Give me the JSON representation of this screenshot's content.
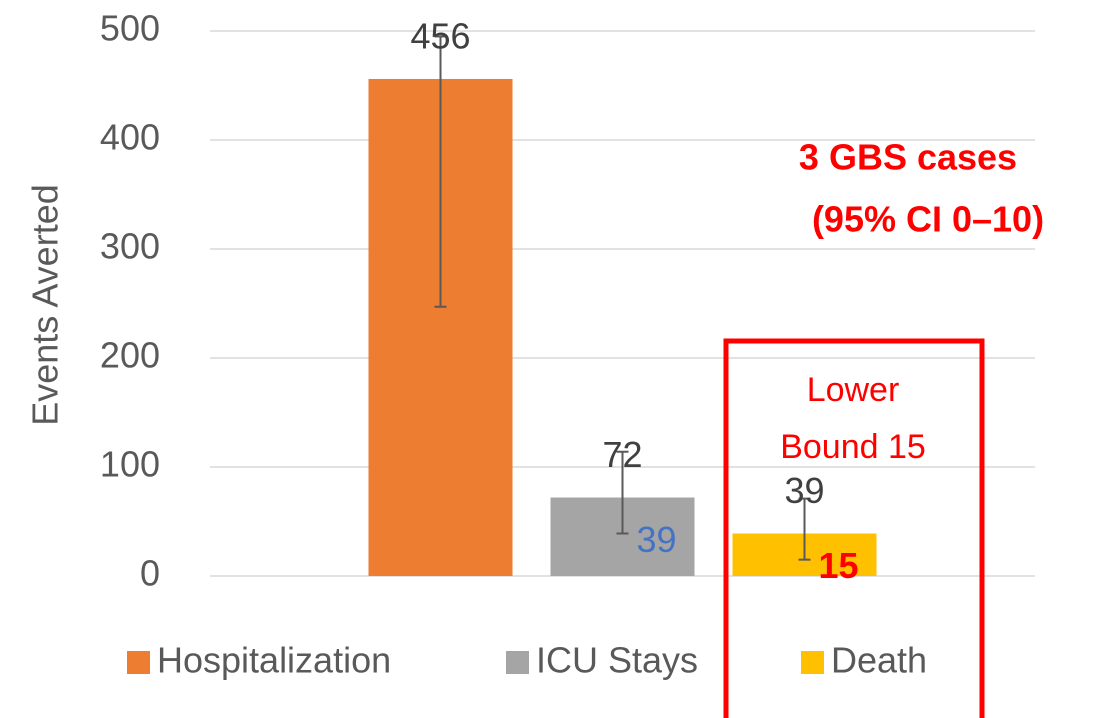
{
  "chart_data": {
    "type": "bar",
    "ylabel": "Events Averted",
    "ylim": [
      0,
      500
    ],
    "yticks": [
      0,
      100,
      200,
      300,
      400,
      500
    ],
    "grid": true,
    "series": [
      {
        "name": "Hospitalization",
        "color": "#ed7d31",
        "values": [
          456
        ],
        "lower": [
          247
        ],
        "upper": [
          495
        ]
      },
      {
        "name": "ICU Stays",
        "color": "#a5a5a5",
        "values": [
          72
        ],
        "lower": [
          39
        ],
        "upper": [
          114
        ]
      },
      {
        "name": "Death",
        "color": "#ffc000",
        "values": [
          39
        ],
        "lower": [
          15
        ],
        "upper": [
          71
        ]
      }
    ],
    "annotations": {
      "gbs_line1": "3 GBS cases",
      "gbs_line2": "(95% CI 0–10)",
      "box_line1": "Lower",
      "box_line2": "Bound 15"
    },
    "lower_label_colors": [
      "#ed7d31",
      "#4472c4",
      "#ff0000"
    ]
  }
}
